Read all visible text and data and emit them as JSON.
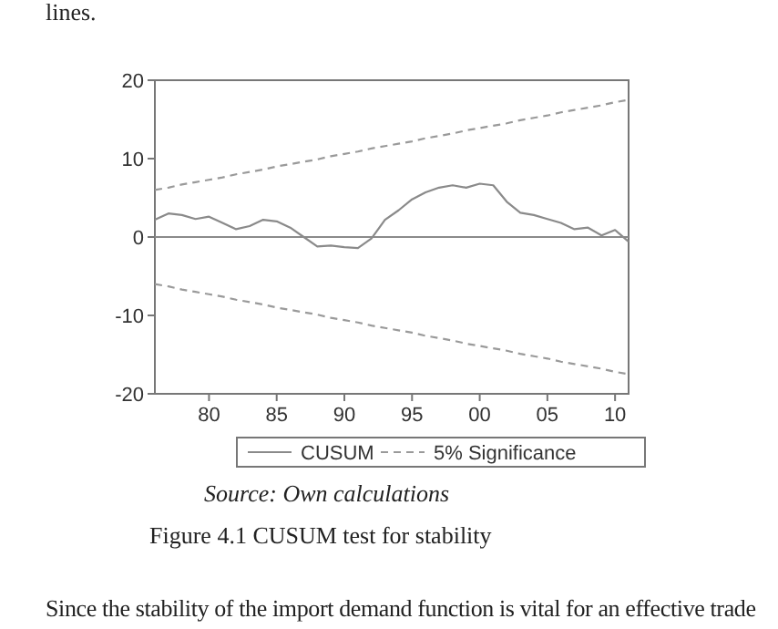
{
  "chart_data": {
    "type": "line",
    "x": [
      1976,
      1977,
      1978,
      1979,
      1980,
      1981,
      1982,
      1983,
      1984,
      1985,
      1986,
      1987,
      1988,
      1989,
      1990,
      1991,
      1992,
      1993,
      1994,
      1995,
      1996,
      1997,
      1998,
      1999,
      2000,
      2001,
      2002,
      2003,
      2004,
      2005,
      2006,
      2007,
      2008,
      2009,
      2010,
      2011
    ],
    "series": [
      {
        "name": "CUSUM",
        "color": "#8a8a8a",
        "line_style": "solid",
        "values": [
          2.2,
          3.0,
          2.8,
          2.3,
          2.6,
          1.8,
          1.0,
          1.4,
          2.2,
          2.0,
          1.2,
          0,
          -1.2,
          -1.1,
          -1.3,
          -1.4,
          -0.2,
          2.2,
          3.4,
          4.8,
          5.7,
          6.3,
          6.6,
          6.3,
          6.8,
          6.6,
          4.5,
          3.1,
          2.8,
          2.3,
          1.8,
          1.0,
          1.2,
          0.2,
          0.9,
          -0.6
        ]
      },
      {
        "name": "5% Significance",
        "color": "#9a9a9a",
        "line_style": "dashed",
        "values": [
          6.0,
          6.3,
          6.7,
          7.0,
          7.3,
          7.6,
          8.0,
          8.3,
          8.6,
          9.0,
          9.3,
          9.6,
          9.9,
          10.3,
          10.6,
          10.9,
          11.3,
          11.6,
          11.9,
          12.2,
          12.6,
          12.9,
          13.2,
          13.6,
          13.9,
          14.2,
          14.5,
          14.9,
          15.2,
          15.5,
          15.9,
          16.2,
          16.5,
          16.8,
          17.2,
          17.5
        ]
      },
      {
        "color": "#9a9a9a",
        "line_style": "dashed",
        "values": [
          -6.0,
          -6.3,
          -6.7,
          -7.0,
          -7.3,
          -7.6,
          -8.0,
          -8.3,
          -8.6,
          -9.0,
          -9.3,
          -9.6,
          -9.9,
          -10.3,
          -10.6,
          -10.9,
          -11.3,
          -11.6,
          -11.9,
          -12.2,
          -12.6,
          -12.9,
          -13.2,
          -13.6,
          -13.9,
          -14.2,
          -14.5,
          -14.9,
          -15.2,
          -15.5,
          -15.9,
          -16.2,
          -16.5,
          -16.8,
          -17.2,
          -17.5
        ]
      }
    ],
    "xlim": [
      1976,
      2011
    ],
    "xticks": [
      {
        "value": 1980,
        "label": "80"
      },
      {
        "value": 1985,
        "label": "85"
      },
      {
        "value": 1990,
        "label": "90"
      },
      {
        "value": 1995,
        "label": "95"
      },
      {
        "value": 2000,
        "label": "00"
      },
      {
        "value": 2005,
        "label": "05"
      },
      {
        "value": 2010,
        "label": "10"
      }
    ],
    "ylim": [
      -20,
      20
    ],
    "yticks": [
      -20,
      -10,
      0,
      10,
      20
    ],
    "ref_lines": [
      {
        "axis": "y",
        "value": 0,
        "color": "#8a8a8a"
      }
    ],
    "grid": false,
    "legend": "bottom",
    "marker": "none",
    "annotations": [
      "lines.",
      "Source: Own calculations",
      "Figure 4.1 CUSUM test for stability",
      "Since the stability of the import demand function is vital for an effective trade"
    ]
  }
}
